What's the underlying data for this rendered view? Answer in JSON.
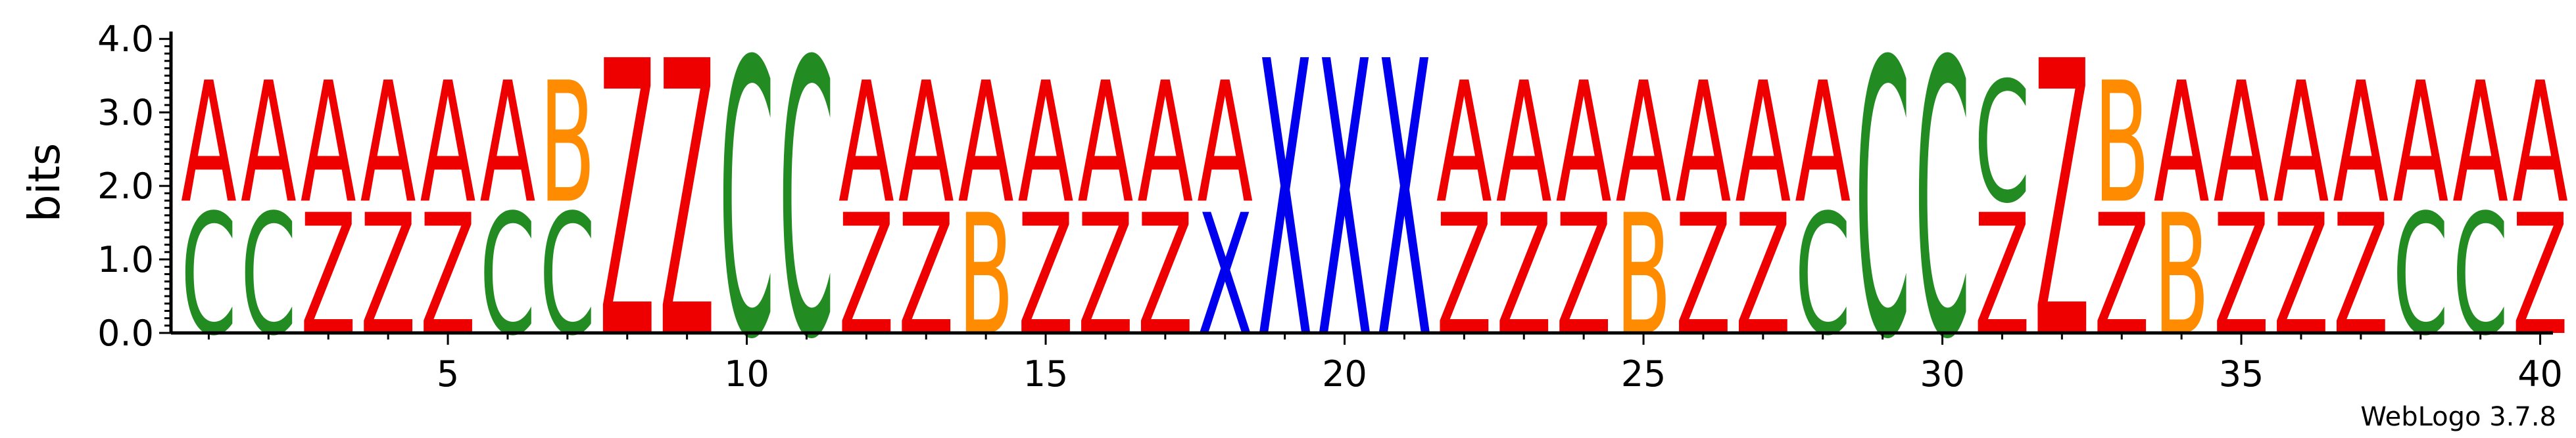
{
  "chart_data": {
    "type": "sequence_logo",
    "ylabel": "bits",
    "ylim": [
      0,
      4.1
    ],
    "y_ticks": [
      "0.0",
      "1.0",
      "2.0",
      "3.0",
      "4.0"
    ],
    "x_ticks": [
      5,
      10,
      15,
      20,
      25,
      30,
      35,
      40
    ],
    "credit": "WebLogo 3.7.8",
    "colors": {
      "A": "#ee0000",
      "Z": "#ee0000",
      "C": "#228b22",
      "B": "#ff8c00",
      "X": "#0000ee"
    },
    "positions": [
      {
        "pos": 1,
        "stack": [
          [
            "C",
            1.8
          ],
          [
            "A",
            1.8
          ]
        ]
      },
      {
        "pos": 2,
        "stack": [
          [
            "C",
            1.8
          ],
          [
            "A",
            1.8
          ]
        ]
      },
      {
        "pos": 3,
        "stack": [
          [
            "Z",
            1.8
          ],
          [
            "A",
            1.8
          ]
        ]
      },
      {
        "pos": 4,
        "stack": [
          [
            "Z",
            1.8
          ],
          [
            "A",
            1.8
          ]
        ]
      },
      {
        "pos": 5,
        "stack": [
          [
            "Z",
            1.8
          ],
          [
            "A",
            1.8
          ]
        ]
      },
      {
        "pos": 6,
        "stack": [
          [
            "C",
            1.8
          ],
          [
            "A",
            1.8
          ]
        ]
      },
      {
        "pos": 7,
        "stack": [
          [
            "C",
            1.8
          ],
          [
            "B",
            1.8
          ]
        ]
      },
      {
        "pos": 8,
        "stack": [
          [
            "Z",
            4.1
          ]
        ]
      },
      {
        "pos": 9,
        "stack": [
          [
            "Z",
            4.1
          ]
        ]
      },
      {
        "pos": 10,
        "stack": [
          [
            "C",
            4.1
          ]
        ]
      },
      {
        "pos": 11,
        "stack": [
          [
            "C",
            4.1
          ]
        ]
      },
      {
        "pos": 12,
        "stack": [
          [
            "Z",
            1.8
          ],
          [
            "A",
            1.8
          ]
        ]
      },
      {
        "pos": 13,
        "stack": [
          [
            "Z",
            1.8
          ],
          [
            "A",
            1.8
          ]
        ]
      },
      {
        "pos": 14,
        "stack": [
          [
            "B",
            1.8
          ],
          [
            "A",
            1.8
          ]
        ]
      },
      {
        "pos": 15,
        "stack": [
          [
            "Z",
            1.8
          ],
          [
            "A",
            1.8
          ]
        ]
      },
      {
        "pos": 16,
        "stack": [
          [
            "Z",
            1.8
          ],
          [
            "A",
            1.8
          ]
        ]
      },
      {
        "pos": 17,
        "stack": [
          [
            "Z",
            1.8
          ],
          [
            "A",
            1.8
          ]
        ]
      },
      {
        "pos": 18,
        "stack": [
          [
            "X",
            1.8
          ],
          [
            "A",
            1.8
          ]
        ]
      },
      {
        "pos": 19,
        "stack": [
          [
            "X",
            4.1
          ]
        ]
      },
      {
        "pos": 20,
        "stack": [
          [
            "X",
            4.1
          ]
        ]
      },
      {
        "pos": 21,
        "stack": [
          [
            "X",
            4.1
          ]
        ]
      },
      {
        "pos": 22,
        "stack": [
          [
            "Z",
            1.8
          ],
          [
            "A",
            1.8
          ]
        ]
      },
      {
        "pos": 23,
        "stack": [
          [
            "Z",
            1.8
          ],
          [
            "A",
            1.8
          ]
        ]
      },
      {
        "pos": 24,
        "stack": [
          [
            "Z",
            1.8
          ],
          [
            "A",
            1.8
          ]
        ]
      },
      {
        "pos": 25,
        "stack": [
          [
            "B",
            1.8
          ],
          [
            "A",
            1.8
          ]
        ]
      },
      {
        "pos": 26,
        "stack": [
          [
            "Z",
            1.8
          ],
          [
            "A",
            1.8
          ]
        ]
      },
      {
        "pos": 27,
        "stack": [
          [
            "Z",
            1.8
          ],
          [
            "A",
            1.8
          ]
        ]
      },
      {
        "pos": 28,
        "stack": [
          [
            "C",
            1.8
          ],
          [
            "A",
            1.8
          ]
        ]
      },
      {
        "pos": 29,
        "stack": [
          [
            "C",
            4.1
          ]
        ]
      },
      {
        "pos": 30,
        "stack": [
          [
            "C",
            4.1
          ]
        ]
      },
      {
        "pos": 31,
        "stack": [
          [
            "Z",
            1.8
          ],
          [
            "C",
            1.8
          ]
        ]
      },
      {
        "pos": 32,
        "stack": [
          [
            "Z",
            4.1
          ]
        ]
      },
      {
        "pos": 33,
        "stack": [
          [
            "Z",
            1.8
          ],
          [
            "B",
            1.8
          ]
        ]
      },
      {
        "pos": 34,
        "stack": [
          [
            "B",
            1.8
          ],
          [
            "A",
            1.8
          ]
        ]
      },
      {
        "pos": 35,
        "stack": [
          [
            "Z",
            1.8
          ],
          [
            "A",
            1.8
          ]
        ]
      },
      {
        "pos": 36,
        "stack": [
          [
            "Z",
            1.8
          ],
          [
            "A",
            1.8
          ]
        ]
      },
      {
        "pos": 37,
        "stack": [
          [
            "Z",
            1.8
          ],
          [
            "A",
            1.8
          ]
        ]
      },
      {
        "pos": 38,
        "stack": [
          [
            "C",
            1.8
          ],
          [
            "A",
            1.8
          ]
        ]
      },
      {
        "pos": 39,
        "stack": [
          [
            "C",
            1.8
          ],
          [
            "A",
            1.8
          ]
        ]
      },
      {
        "pos": 40,
        "stack": [
          [
            "Z",
            1.8
          ],
          [
            "A",
            1.8
          ]
        ]
      }
    ]
  }
}
